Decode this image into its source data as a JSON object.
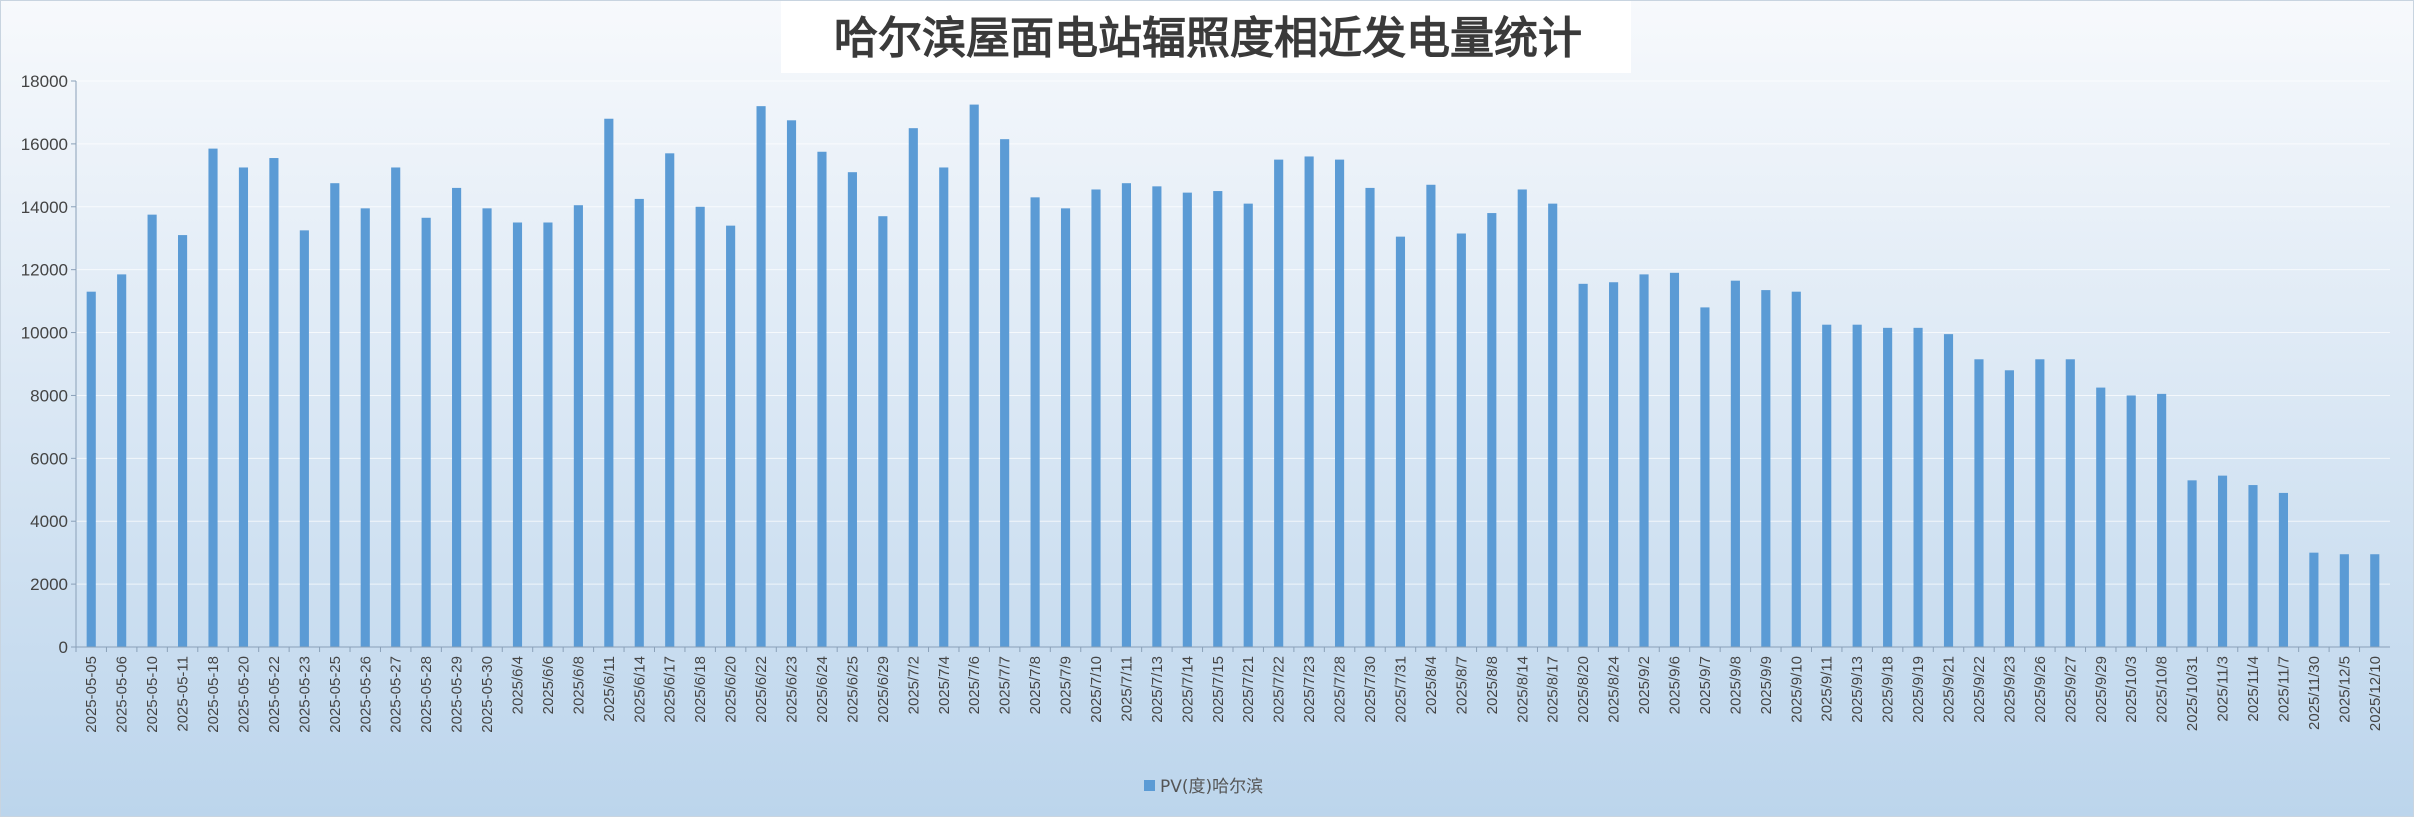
{
  "chart_data": {
    "type": "bar",
    "title": "哈尔滨屋面电站辐照度相近发电量统计",
    "xlabel": "",
    "ylabel": "",
    "ylim": [
      0,
      18000
    ],
    "yticks": [
      0,
      2000,
      4000,
      6000,
      8000,
      10000,
      12000,
      14000,
      16000,
      18000
    ],
    "grid": true,
    "legend_position": "bottom",
    "bar_color": "#5b9bd5",
    "categories": [
      "2025-05-05",
      "2025-05-06",
      "2025-05-10",
      "2025-05-11",
      "2025-05-18",
      "2025-05-20",
      "2025-05-22",
      "2025-05-23",
      "2025-05-25",
      "2025-05-26",
      "2025-05-27",
      "2025-05-28",
      "2025-05-29",
      "2025-05-30",
      "2025/6/4",
      "2025/6/6",
      "2025/6/8",
      "2025/6/11",
      "2025/6/14",
      "2025/6/17",
      "2025/6/18",
      "2025/6/20",
      "2025/6/22",
      "2025/6/23",
      "2025/6/24",
      "2025/6/25",
      "2025/6/29",
      "2025/7/2",
      "2025/7/4",
      "2025/7/6",
      "2025/7/7",
      "2025/7/8",
      "2025/7/9",
      "2025/7/10",
      "2025/7/11",
      "2025/7/13",
      "2025/7/14",
      "2025/7/15",
      "2025/7/21",
      "2025/7/22",
      "2025/7/23",
      "2025/7/28",
      "2025/7/30",
      "2025/7/31",
      "2025/8/4",
      "2025/8/7",
      "2025/8/8",
      "2025/8/14",
      "2025/8/17",
      "2025/8/20",
      "2025/8/24",
      "2025/9/2",
      "2025/9/6",
      "2025/9/7",
      "2025/9/8",
      "2025/9/9",
      "2025/9/10",
      "2025/9/11",
      "2025/9/13",
      "2025/9/18",
      "2025/9/19",
      "2025/9/21",
      "2025/9/22",
      "2025/9/23",
      "2025/9/26",
      "2025/9/27",
      "2025/9/29",
      "2025/10/3",
      "2025/10/8",
      "2025/10/31",
      "2025/11/3",
      "2025/11/4",
      "2025/11/7",
      "2025/11/30",
      "2025/12/5",
      "2025/12/10"
    ],
    "series": [
      {
        "name": "PV(度)哈尔滨",
        "values": [
          11300,
          11850,
          13750,
          13100,
          15850,
          15250,
          15550,
          13250,
          14750,
          13950,
          15250,
          13650,
          14600,
          13950,
          13500,
          13500,
          14050,
          16800,
          14250,
          15700,
          14000,
          13400,
          17200,
          16750,
          15750,
          15100,
          13700,
          16500,
          15250,
          17250,
          16150,
          14300,
          13950,
          14550,
          14750,
          14650,
          14450,
          14500,
          14100,
          15500,
          15600,
          15500,
          14600,
          13050,
          14700,
          13150,
          13800,
          14550,
          14100,
          11550,
          11600,
          11850,
          11900,
          10800,
          11650,
          11350,
          11300,
          10250,
          10250,
          10150,
          10150,
          9950,
          9150,
          8800,
          9150,
          9150,
          8250,
          8000,
          8050,
          5300,
          5450,
          5150,
          4900,
          3000,
          2950,
          2950
        ]
      }
    ]
  }
}
